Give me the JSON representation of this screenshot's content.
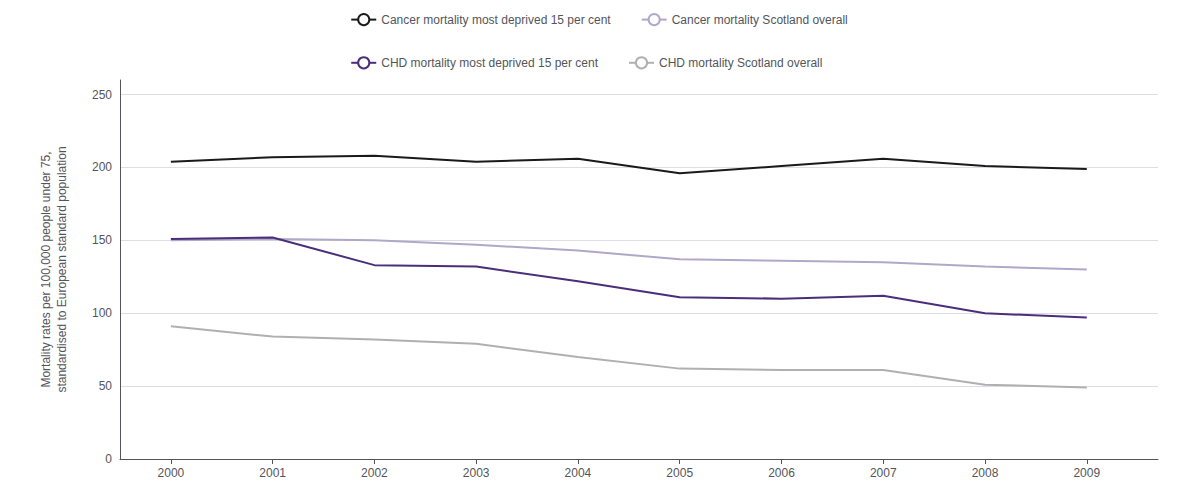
{
  "chart_data": {
    "type": "line",
    "x": [
      2000,
      2001,
      2002,
      2003,
      2004,
      2005,
      2006,
      2007,
      2008,
      2009
    ],
    "series": [
      {
        "name": "Cancer mortality most deprived 15 per cent",
        "color": "#1a1a1a",
        "values": [
          204,
          207,
          208,
          204,
          206,
          196,
          201,
          206,
          201,
          199
        ]
      },
      {
        "name": "Cancer mortality Scotland overall",
        "color": "#b0a8c8",
        "values": [
          150,
          151,
          150,
          147,
          143,
          137,
          136,
          135,
          132,
          130
        ]
      },
      {
        "name": "CHD mortality most deprived 15 per cent",
        "color": "#4b2e7a",
        "values": [
          151,
          152,
          133,
          132,
          122,
          111,
          110,
          112,
          100,
          97
        ]
      },
      {
        "name": "CHD mortality Scotland overall",
        "color": "#b0b0b0",
        "values": [
          91,
          84,
          82,
          79,
          70,
          62,
          61,
          61,
          51,
          49
        ]
      }
    ],
    "xlim": [
      1999.5,
      2009.7
    ],
    "xticks": [
      2000,
      2001,
      2002,
      2003,
      2004,
      2005,
      2006,
      2007,
      2008,
      2009
    ],
    "ylim": [
      0,
      260
    ],
    "yticks": [
      0,
      50,
      100,
      150,
      200,
      250
    ],
    "ylabel": "Mortality rates per 100,000 people under 75,\nstandardised to European standard population",
    "grid": true,
    "legend": "top"
  }
}
